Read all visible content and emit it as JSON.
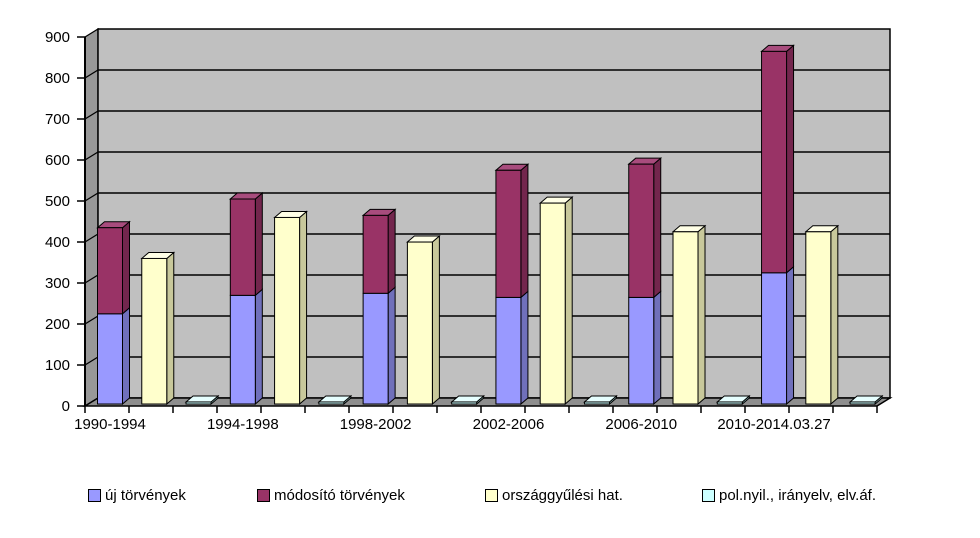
{
  "chart_data": {
    "type": "bar",
    "subtype": "grouped-with-stack-3d-effect",
    "title": "",
    "xlabel": "",
    "ylabel": "",
    "categories": [
      "1990-1994",
      "1994-1998",
      "1998-2002",
      "2002-2006",
      "2006-2010",
      "2010-2014.03.27"
    ],
    "series": [
      {
        "name": "új törvények",
        "color": "#9999FF",
        "side_color": "#7070BB",
        "top_color": "#AAAAEE",
        "slot": 0,
        "values": [
          220,
          265,
          270,
          260,
          260,
          320
        ]
      },
      {
        "name": "módosító törvények",
        "color": "#993366",
        "side_color": "#73264D",
        "top_color": "#A84C7D",
        "slot": 0,
        "values": [
          210,
          235,
          190,
          310,
          325,
          540
        ]
      },
      {
        "name": "országgyűlési hat.",
        "color": "#FFFFCC",
        "side_color": "#C8C89B",
        "top_color": "#FFFFE6",
        "slot": 1,
        "values": [
          355,
          455,
          395,
          490,
          420,
          420
        ]
      },
      {
        "name": "pol.nyil., irányelv, elv.áf.",
        "color": "#CCFFFF",
        "side_color": "#99CCCC",
        "top_color": "#E6FFFF",
        "slot": 2,
        "values": [
          5,
          5,
          5,
          5,
          5,
          5
        ]
      }
    ],
    "stacked_totals": [
      430,
      500,
      460,
      570,
      585,
      860
    ],
    "ylim": [
      0,
      900
    ],
    "ytick_step": 100,
    "y_tick_labels": [
      "0",
      "100",
      "200",
      "300",
      "400",
      "500",
      "600",
      "700",
      "800",
      "900"
    ],
    "grid": true,
    "legend_position": "bottom",
    "colors": {
      "wall_back": "#C0C0C0",
      "wall_side": "#989898",
      "floor": "#8E8E8E",
      "gridline": "#000000",
      "axis": "#000000",
      "text": "#000000",
      "background": "#FFFFFF"
    }
  }
}
